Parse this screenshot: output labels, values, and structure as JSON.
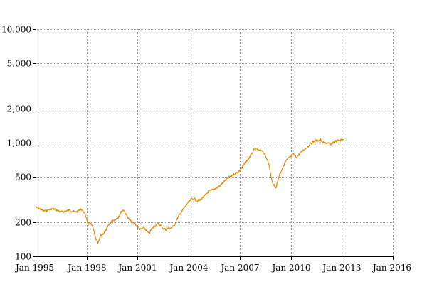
{
  "chart_data": {
    "type": "line",
    "title": "",
    "xlabel": "",
    "ylabel": "",
    "y_scale": "log",
    "ylim": [
      100,
      10000
    ],
    "xlim": [
      "1995-01-01",
      "2016-01-01"
    ],
    "grid": true,
    "legend": "none",
    "colors": {
      "series": "#e08a0b",
      "grid": "#9a9a9a",
      "axis": "#000000"
    },
    "y_ticks": [
      {
        "value": 100,
        "label": "100"
      },
      {
        "value": 200,
        "label": "200"
      },
      {
        "value": 500,
        "label": "500"
      },
      {
        "value": 1000,
        "label": "1,000"
      },
      {
        "value": 2000,
        "label": "2,000"
      },
      {
        "value": 5000,
        "label": "5,000"
      },
      {
        "value": 10000,
        "label": "10,000"
      }
    ],
    "x_ticks": [
      {
        "date": "1995-01-01",
        "label": "Jan 1995"
      },
      {
        "date": "1998-01-01",
        "label": "Jan 1998"
      },
      {
        "date": "2001-01-01",
        "label": "Jan 2001"
      },
      {
        "date": "2004-01-01",
        "label": "Jan 2004"
      },
      {
        "date": "2007-01-01",
        "label": "Jan 2007"
      },
      {
        "date": "2010-01-01",
        "label": "Jan 2010"
      },
      {
        "date": "2013-01-01",
        "label": "Jan 2013"
      },
      {
        "date": "2016-01-01",
        "label": "Jan 2016"
      }
    ],
    "series": [
      {
        "x": [
          "1995-01-01",
          "1995-03-01",
          "1995-05-01",
          "1995-07-01",
          "1995-09-01",
          "1995-11-01",
          "1996-01-01",
          "1996-03-01",
          "1996-05-01",
          "1996-07-01",
          "1996-09-01",
          "1996-11-01",
          "1997-01-01",
          "1997-03-01",
          "1997-05-01",
          "1997-07-01",
          "1997-09-01",
          "1997-11-01",
          "1998-01-01",
          "1998-02-01",
          "1998-04-01",
          "1998-06-01",
          "1998-07-01",
          "1998-09-01",
          "1998-11-01",
          "1999-01-01",
          "1999-03-01",
          "1999-05-01",
          "1999-07-01",
          "1999-09-01",
          "1999-11-01",
          "2000-01-01",
          "2000-03-01",
          "2000-05-01",
          "2000-07-01",
          "2000-09-01",
          "2000-11-01",
          "2001-01-01",
          "2001-03-01",
          "2001-05-01",
          "2001-07-01",
          "2001-09-01",
          "2001-11-01",
          "2002-01-01",
          "2002-03-01",
          "2002-05-01",
          "2002-07-01",
          "2002-09-01",
          "2002-11-01",
          "2003-01-01",
          "2003-03-01",
          "2003-05-01",
          "2003-07-01",
          "2003-09-01",
          "2003-11-01",
          "2004-01-01",
          "2004-03-01",
          "2004-05-01",
          "2004-07-01",
          "2004-09-01",
          "2004-11-01",
          "2005-01-01",
          "2005-03-01",
          "2005-05-01",
          "2005-07-01",
          "2005-09-01",
          "2005-11-01",
          "2006-01-01",
          "2006-03-01",
          "2006-05-01",
          "2006-07-01",
          "2006-09-01",
          "2006-11-01",
          "2007-01-01",
          "2007-03-01",
          "2007-05-01",
          "2007-07-01",
          "2007-09-01",
          "2007-11-01",
          "2008-01-01",
          "2008-03-01",
          "2008-05-01",
          "2008-07-01",
          "2008-09-01",
          "2008-10-01",
          "2008-11-01",
          "2008-12-01",
          "2009-01-01",
          "2009-02-01",
          "2009-03-01",
          "2009-05-01",
          "2009-07-01",
          "2009-09-01",
          "2009-11-01",
          "2010-01-01",
          "2010-03-01",
          "2010-05-01",
          "2010-07-01",
          "2010-09-01",
          "2010-11-01",
          "2011-01-01",
          "2011-03-01",
          "2011-05-01",
          "2011-07-01",
          "2011-09-01",
          "2011-10-01",
          "2011-11-01",
          "2012-01-01",
          "2012-03-01",
          "2012-05-01",
          "2012-07-01",
          "2012-09-01",
          "2012-11-01",
          "2013-01-01",
          "2013-02-01"
        ],
        "y": [
          270,
          265,
          258,
          250,
          252,
          258,
          262,
          258,
          252,
          245,
          248,
          252,
          256,
          250,
          245,
          250,
          262,
          245,
          218,
          190,
          198,
          170,
          148,
          130,
          152,
          160,
          172,
          192,
          205,
          212,
          218,
          242,
          258,
          232,
          212,
          200,
          192,
          182,
          172,
          178,
          170,
          158,
          175,
          184,
          194,
          188,
          176,
          172,
          178,
          178,
          188,
          215,
          236,
          258,
          278,
          300,
          318,
          322,
          308,
          312,
          330,
          348,
          372,
          378,
          392,
          402,
          418,
          442,
          468,
          492,
          510,
          530,
          548,
          568,
          612,
          668,
          712,
          782,
          862,
          880,
          845,
          862,
          762,
          690,
          605,
          510,
          445,
          430,
          398,
          420,
          520,
          592,
          672,
          722,
          752,
          792,
          742,
          792,
          842,
          882,
          922,
          982,
          1022,
          1045,
          1050,
          1062,
          1005,
          990,
          1000,
          955,
          1010,
          1035,
          1042,
          1060,
          1075
        ]
      }
    ]
  }
}
